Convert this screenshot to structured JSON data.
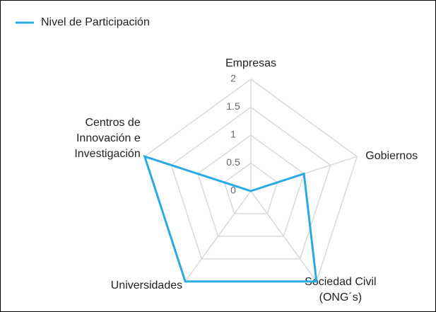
{
  "chart_data": {
    "type": "radar",
    "categories": [
      "Empresas",
      "Gobiernos",
      "Sociedad Civil\n(ONG´s)",
      "Universidades",
      "Centros de\nInnovación e\nInvestigación"
    ],
    "series": [
      {
        "name": "Nivel de Participación",
        "color": "#29abe2",
        "values": [
          0,
          1,
          2,
          2,
          2
        ]
      }
    ],
    "ylim": [
      0,
      2
    ],
    "yticks": [
      0,
      0.5,
      1,
      1.5,
      2
    ],
    "grid": true,
    "legend": "top-left"
  }
}
